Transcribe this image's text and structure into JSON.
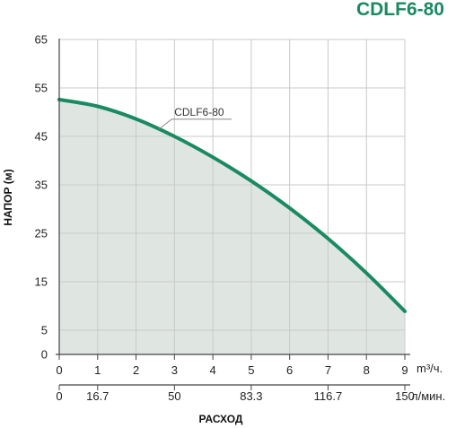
{
  "chart_data": {
    "type": "area",
    "title": "CDLF6-80",
    "ylabel": "НАПОР (м)",
    "xlabel": "РАСХОД",
    "x_unit_primary": "m³/ч.",
    "x_unit_secondary": "л/мин.",
    "xlim": [
      0,
      9
    ],
    "ylim": [
      0,
      65
    ],
    "y_ticks": [
      "0",
      "5",
      "15",
      "25",
      "35",
      "45",
      "55",
      "65"
    ],
    "x_ticks_primary": [
      "0",
      "1",
      "2",
      "3",
      "4",
      "5",
      "6",
      "7",
      "8",
      "9"
    ],
    "x_ticks_secondary": [
      {
        "x": 0,
        "label": "0"
      },
      {
        "x": 1,
        "label": "16.7"
      },
      {
        "x": 3,
        "label": "50"
      },
      {
        "x": 5,
        "label": "83.3"
      },
      {
        "x": 7,
        "label": "116.7"
      },
      {
        "x": 9,
        "label": "150"
      }
    ],
    "grid": true,
    "series": [
      {
        "name": "CDLF6-80",
        "x": [
          0,
          1,
          2,
          3,
          4,
          5,
          6,
          7,
          8,
          9
        ],
        "y": [
          52.6,
          51.2,
          48.6,
          45.0,
          40.7,
          35.8,
          30.2,
          23.9,
          16.8,
          8.9
        ]
      }
    ],
    "colors": {
      "curve": "#1a8a63",
      "fill": "#dfe6e2",
      "title": "#1a8a63",
      "grid": "#c9c9c9"
    }
  }
}
